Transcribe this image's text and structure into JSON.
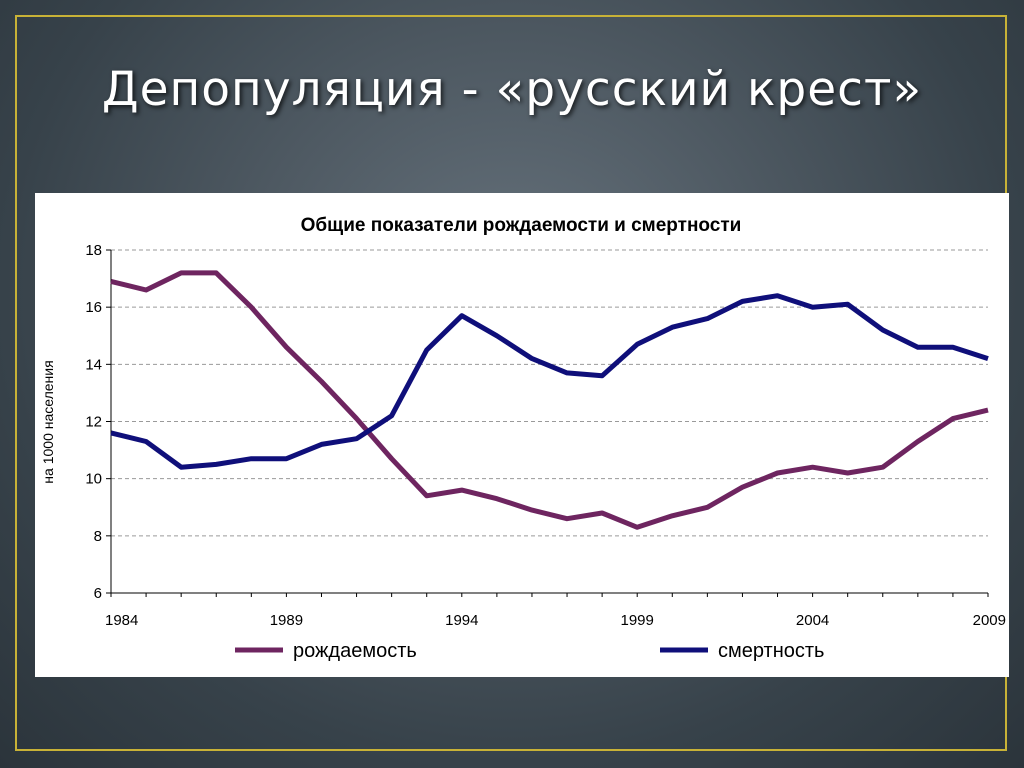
{
  "slide": {
    "title": "Депопуляция - «русский крест»"
  },
  "colors": {
    "birth": "#6e2560",
    "death": "#0f0f7a",
    "frame": "#c8b237"
  },
  "chart_data": {
    "type": "line",
    "title": "Общие показатели рождаемости и смертности",
    "xlabel": "",
    "ylabel": "на 1000 населения",
    "x": [
      1984,
      1985,
      1986,
      1987,
      1988,
      1989,
      1990,
      1991,
      1992,
      1993,
      1994,
      1995,
      1996,
      1997,
      1998,
      1999,
      2000,
      2001,
      2002,
      2003,
      2004,
      2005,
      2006,
      2007,
      2008,
      2009
    ],
    "xticks": [
      "1984",
      "1989",
      "1994",
      "1999",
      "2004",
      "2009"
    ],
    "ylim": [
      6,
      18
    ],
    "yticks": [
      "6",
      "8",
      "10",
      "12",
      "14",
      "16",
      "18"
    ],
    "grid": "horizontal dashed",
    "legend_position": "bottom",
    "series": [
      {
        "name": "рождаемость",
        "color": "#6e2560",
        "values": [
          16.9,
          16.6,
          17.2,
          17.2,
          16.0,
          14.6,
          13.4,
          12.1,
          10.7,
          9.4,
          9.6,
          9.3,
          8.9,
          8.6,
          8.8,
          8.3,
          8.7,
          9.0,
          9.7,
          10.2,
          10.4,
          10.2,
          10.4,
          11.3,
          12.1,
          12.4
        ]
      },
      {
        "name": "смертность",
        "color": "#0f0f7a",
        "values": [
          11.6,
          11.3,
          10.4,
          10.5,
          10.7,
          10.7,
          11.2,
          11.4,
          12.2,
          14.5,
          15.7,
          15.0,
          14.2,
          13.7,
          13.6,
          14.7,
          15.3,
          15.6,
          16.2,
          16.4,
          16.0,
          16.1,
          15.2,
          14.6,
          14.6,
          14.2
        ]
      }
    ]
  }
}
